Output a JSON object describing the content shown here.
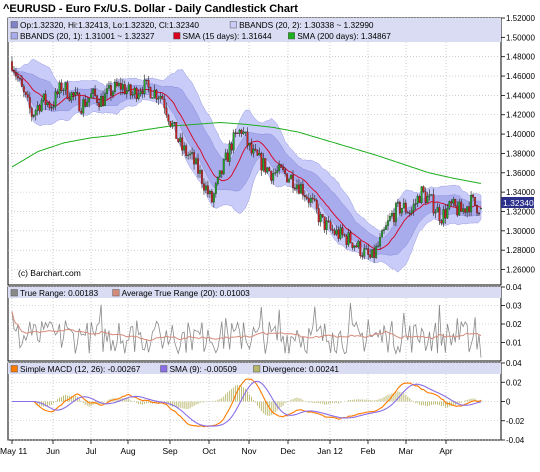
{
  "title": "^EURUSD - Euro Fx/U.S. Dollar - Daily Candlestick Chart",
  "copyright": "(c) Barchart.com",
  "colors": {
    "legend_bg": "#d9dcf2",
    "bb_outer": "#c9cbf8",
    "bb_inner": "#a8abec",
    "sma15": "#d9001e",
    "sma200": "#1fae1f",
    "candle_up": "#22aa22",
    "candle_down": "#d02020",
    "atr": "#d58b7a",
    "true_range": "#8a8a8a",
    "macd": "#ff7a00",
    "macd_signal": "#8a6ee6",
    "divergence": "#b7b66a",
    "grid": "#b0b0b0"
  },
  "legend_main": {
    "row1": [
      {
        "label": "Op:1.32320, Hi:1.32413, Lo:1.32320, Cl:1.32340",
        "swatch": "#7f82c7"
      },
      {
        "label": "BBANDS (20, 2): 1.30338 ~ 1.32990",
        "swatch": "#c9cbf8"
      }
    ],
    "row2": [
      {
        "label": "BBANDS (20, 1): 1.31001 ~ 1.32327",
        "swatch": "#a8abec"
      },
      {
        "label": "SMA (15 days): 1.31644",
        "swatch": "#d9001e"
      },
      {
        "label": "SMA (200 days): 1.34867",
        "swatch": "#1fae1f"
      }
    ]
  },
  "legend_atr": [
    {
      "label": "True Range: 0.00183",
      "swatch": "#8a8a8a"
    },
    {
      "label": "Average True Range (20): 0.01003",
      "swatch": "#d58b7a"
    }
  ],
  "legend_macd": [
    {
      "label": "Simple MACD (12, 26): -0.00267",
      "swatch": "#ff7a00"
    },
    {
      "label": "SMA (9): -0.00509",
      "swatch": "#8a6ee6"
    },
    {
      "label": "Divergence: 0.00241",
      "swatch": "#b7b66a"
    }
  ],
  "last_price_tag": "1.32340",
  "chart_data": {
    "type": "line",
    "price_axis": {
      "ylim": [
        1.244,
        1.52
      ],
      "ticks": [
        "1.52000",
        "1.50000",
        "1.48000",
        "1.46000",
        "1.44000",
        "1.42000",
        "1.40000",
        "1.38000",
        "1.36000",
        "1.34000",
        "1.32000",
        "1.30000",
        "1.28000",
        "1.26000"
      ]
    },
    "atr_axis": {
      "ylim": [
        0.0,
        0.04
      ],
      "ticks": [
        "0.04",
        "0.03",
        "0.02",
        "0.01"
      ]
    },
    "macd_axis": {
      "ylim": [
        -0.04,
        0.04
      ],
      "ticks": [
        "0.04",
        "0.02",
        "0",
        "-0.02",
        "-0.04"
      ]
    },
    "x_labels": [
      "May 11",
      "Jun",
      "Jul",
      "Aug",
      "Sep",
      "Oct",
      "Nov",
      "Dec",
      "Jan 12",
      "Feb",
      "Mar",
      "Apr"
    ],
    "price_close_approx": [
      1.475,
      1.445,
      1.42,
      1.435,
      1.43,
      1.45,
      1.44,
      1.43,
      1.44,
      1.435,
      1.445,
      1.45,
      1.44,
      1.45,
      1.445,
      1.44,
      1.41,
      1.385,
      1.375,
      1.355,
      1.33,
      1.36,
      1.39,
      1.405,
      1.38,
      1.37,
      1.36,
      1.36,
      1.355,
      1.345,
      1.33,
      1.31,
      1.3,
      1.295,
      1.29,
      1.28,
      1.27,
      1.29,
      1.315,
      1.325,
      1.32,
      1.34,
      1.33,
      1.315,
      1.325,
      1.32,
      1.33,
      1.323
    ],
    "sma200_approx": [
      1.366,
      1.382,
      1.391,
      1.396,
      1.399,
      1.404,
      1.408,
      1.41,
      1.412,
      1.41,
      1.407,
      1.402,
      1.394,
      1.386,
      1.378,
      1.369,
      1.36,
      1.354,
      1.349
    ],
    "last": {
      "open": 1.3232,
      "high": 1.32413,
      "low": 1.3232,
      "close": 1.3234
    }
  }
}
